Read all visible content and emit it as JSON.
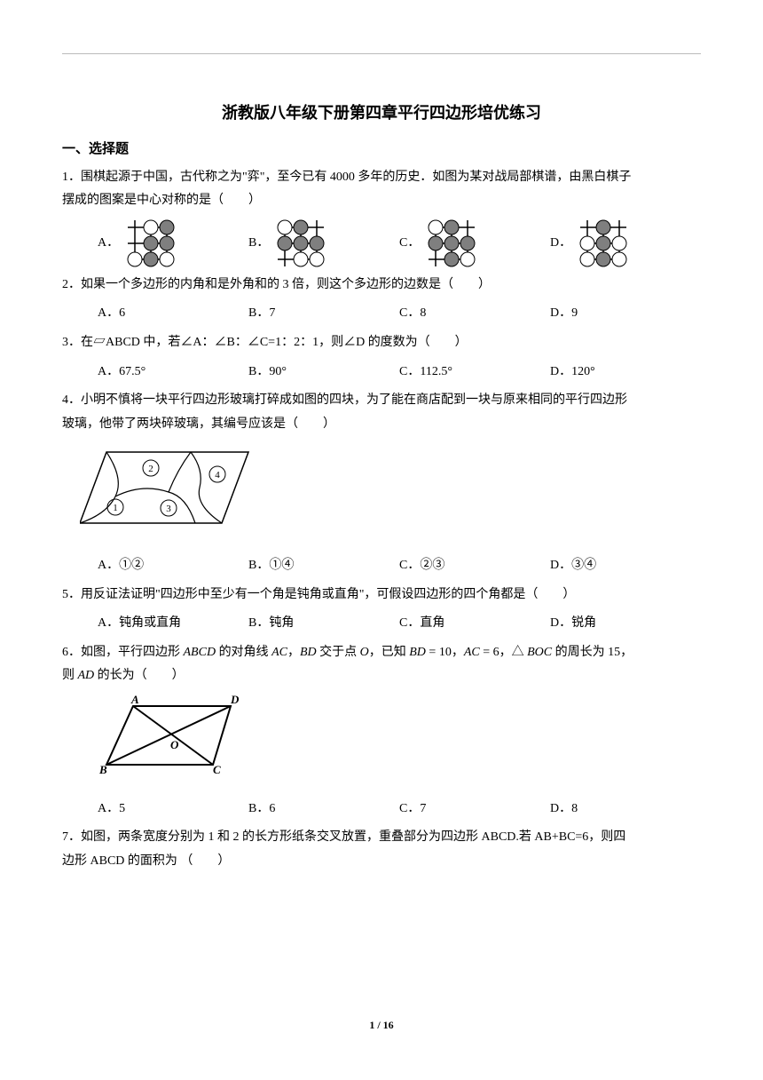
{
  "title": "浙教版八年级下册第四章平行四边形培优练习",
  "section1": "一、选择题",
  "q1": {
    "stem1": "1．围棋起源于中国，古代称之为\"弈\"，至今已有 4000 多年的历史．如图为某对战局部棋谱，由黑白棋子",
    "stem2": "摆成的图案是中心对称的是（　　）",
    "opts": [
      "A．",
      "B．",
      "C．",
      "D．"
    ],
    "boards": [
      {
        "white": [
          [
            0,
            1
          ],
          [
            2,
            0
          ],
          [
            2,
            2
          ]
        ],
        "black": [
          [
            0,
            2
          ],
          [
            1,
            1
          ],
          [
            1,
            2
          ],
          [
            2,
            1
          ]
        ]
      },
      {
        "white": [
          [
            0,
            0
          ],
          [
            2,
            1
          ],
          [
            2,
            2
          ]
        ],
        "black": [
          [
            0,
            1
          ],
          [
            1,
            0
          ],
          [
            1,
            1
          ],
          [
            1,
            2
          ]
        ]
      },
      {
        "white": [
          [
            0,
            0
          ],
          [
            2,
            2
          ]
        ],
        "black": [
          [
            0,
            1
          ],
          [
            1,
            0
          ],
          [
            1,
            1
          ],
          [
            1,
            2
          ],
          [
            2,
            1
          ]
        ]
      },
      {
        "white": [
          [
            1,
            0
          ],
          [
            1,
            2
          ],
          [
            2,
            0
          ],
          [
            2,
            2
          ]
        ],
        "black": [
          [
            0,
            1
          ],
          [
            1,
            1
          ],
          [
            2,
            1
          ]
        ]
      }
    ],
    "colors": {
      "black": "#7f7f7f",
      "white": "#ffffff",
      "stroke": "#000000"
    }
  },
  "q2": {
    "stem": "2．如果一个多边形的内角和是外角和的 3 倍，则这个多边形的边数是（　　）",
    "opts": [
      "A．6",
      "B．7",
      "C．8",
      "D．9"
    ]
  },
  "q3": {
    "stem": "3．在▱ABCD 中，若∠A：∠B：∠C=1：2：1，则∠D 的度数为（　　）",
    "opts": [
      "A．67.5°",
      "B．90°",
      "C．112.5°",
      "D．120°"
    ]
  },
  "q4": {
    "stem1": "4．小明不慎将一块平行四边形玻璃打碎成如图的四块，为了能在商店配到一块与原来相同的平行四边形",
    "stem2": "玻璃，他带了两块碎玻璃，其编号应该是（　　）",
    "opts": [
      "A．①②",
      "B．①④",
      "C．②③",
      "D．③④"
    ]
  },
  "q5": {
    "stem": "5．用反证法证明\"四边形中至少有一个角是钝角或直角\"，可假设四边形的四个角都是（　　）",
    "opts": [
      "A．钝角或直角",
      "B．钝角",
      "C．直角",
      "D．锐角"
    ]
  },
  "q6": {
    "stem1_a": "6．如图，平行四边形 ",
    "stem1_b": " 的对角线 ",
    "stem1_c": "，",
    "stem1_d": " 交于点 ",
    "stem1_e": "，已知 ",
    "stem1_f": " = 10，",
    "stem1_g": " = 6，△ ",
    "stem1_h": " 的周长为 15，",
    "abcd": "ABCD",
    "ac": "AC",
    "bd": "BD",
    "o": "O",
    "boc": "BOC",
    "stem2_a": "则 ",
    "ad": "AD",
    "stem2_b": " 的长为（　　）",
    "opts": [
      "A．5",
      "B．6",
      "C．7",
      "D．8"
    ],
    "labels": {
      "A": "A",
      "B": "B",
      "C": "C",
      "D": "D",
      "O": "O"
    }
  },
  "q7": {
    "stem1": "7．如图，两条宽度分别为 1 和 2 的长方形纸条交叉放置，重叠部分为四边形 ABCD.若 AB+BC=6，则四",
    "stem2": "边形 ABCD 的面积为 （　　）"
  },
  "pagenum": "1 / 16"
}
